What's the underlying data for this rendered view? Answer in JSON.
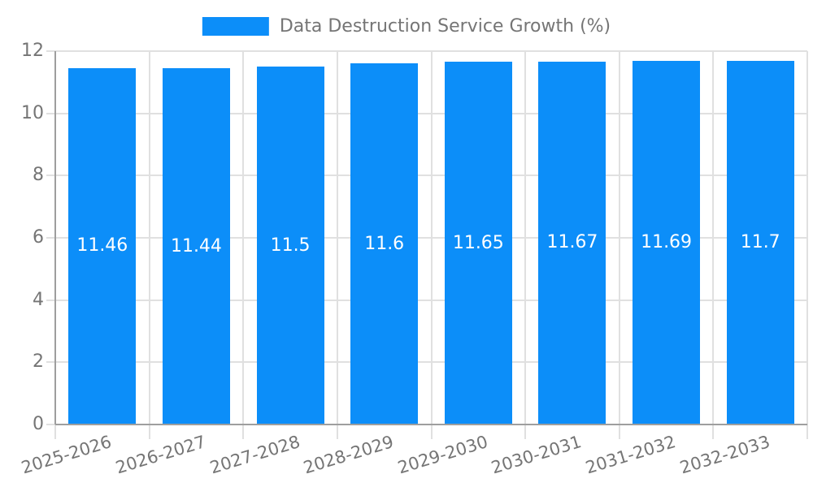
{
  "chart_data": {
    "type": "bar",
    "title": "",
    "legend_label": "Data Destruction Service Growth (%)",
    "legend_position": "top-center",
    "categories": [
      "2025-2026",
      "2026-2027",
      "2027-2028",
      "2028-2029",
      "2029-2030",
      "2030-2031",
      "2031-2032",
      "2032-2033"
    ],
    "series": [
      {
        "name": "Data Destruction Service Growth (%)",
        "values": [
          11.46,
          11.44,
          11.5,
          11.6,
          11.65,
          11.67,
          11.69,
          11.7
        ],
        "value_labels": [
          "11.46",
          "11.44",
          "11.5",
          "11.6",
          "11.65",
          "11.67",
          "11.69",
          "11.7"
        ]
      }
    ],
    "xlabel": "",
    "ylabel": "",
    "ylim": [
      0,
      12
    ],
    "yticks": [
      0,
      2,
      4,
      6,
      8,
      10,
      12
    ],
    "ytick_labels": [
      "0",
      "2",
      "4",
      "6",
      "8",
      "10",
      "12"
    ],
    "grid": true,
    "colors": {
      "bar": "#0C8EF9",
      "grid": "#E0E0E0",
      "axis": "#9E9E9E",
      "tick_text": "#757575",
      "value_text": "#FFFFFF",
      "background": "#FFFFFF"
    }
  }
}
